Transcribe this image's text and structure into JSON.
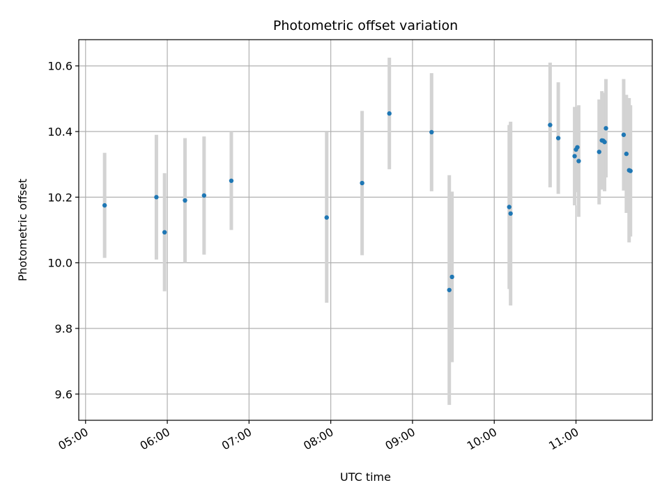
{
  "chart_data": {
    "type": "scatter",
    "title": "Photometric offset variation",
    "xlabel": "UTC time",
    "ylabel": "Photometric offset",
    "xlim": [
      "04:55",
      "11:56"
    ],
    "ylim": [
      9.52,
      10.68
    ],
    "xticks": [
      "05:00",
      "06:00",
      "07:00",
      "08:00",
      "09:00",
      "10:00",
      "11:00"
    ],
    "yticks": [
      "9.6",
      "9.8",
      "10.0",
      "10.2",
      "10.4",
      "10.6"
    ],
    "grid": true,
    "colors": {
      "points": "#1f77b4",
      "errorbars": "#d3d3d3",
      "grid": "#b0b0b0"
    },
    "points": [
      {
        "t": "05:14",
        "y": 10.175,
        "err": 0.16
      },
      {
        "t": "05:52",
        "y": 10.2,
        "err": 0.19
      },
      {
        "t": "05:58",
        "y": 10.093,
        "err": 0.18
      },
      {
        "t": "06:13",
        "y": 10.19,
        "err": 0.19
      },
      {
        "t": "06:27",
        "y": 10.205,
        "err": 0.18
      },
      {
        "t": "06:47",
        "y": 10.25,
        "err": 0.15
      },
      {
        "t": "07:57",
        "y": 10.138,
        "err": 0.26
      },
      {
        "t": "08:23",
        "y": 10.243,
        "err": 0.22
      },
      {
        "t": "08:43",
        "y": 10.455,
        "err": 0.17
      },
      {
        "t": "09:14",
        "y": 10.398,
        "err": 0.18
      },
      {
        "t": "09:27",
        "y": 9.917,
        "err": 0.35
      },
      {
        "t": "09:29",
        "y": 9.957,
        "err": 0.26
      },
      {
        "t": "10:11",
        "y": 10.17,
        "err": 0.25
      },
      {
        "t": "10:12",
        "y": 10.15,
        "err": 0.28
      },
      {
        "t": "10:41",
        "y": 10.42,
        "err": 0.19
      },
      {
        "t": "10:47",
        "y": 10.38,
        "err": 0.17
      },
      {
        "t": "10:59",
        "y": 10.325,
        "err": 0.15
      },
      {
        "t": "11:00",
        "y": 10.345,
        "err": 0.13
      },
      {
        "t": "11:01",
        "y": 10.352,
        "err": 0.12
      },
      {
        "t": "11:02",
        "y": 10.31,
        "err": 0.17
      },
      {
        "t": "11:17",
        "y": 10.338,
        "err": 0.16
      },
      {
        "t": "11:19",
        "y": 10.373,
        "err": 0.15
      },
      {
        "t": "11:20",
        "y": 10.372,
        "err": 0.14
      },
      {
        "t": "11:21",
        "y": 10.368,
        "err": 0.15
      },
      {
        "t": "11:22",
        "y": 10.41,
        "err": 0.15
      },
      {
        "t": "11:35",
        "y": 10.39,
        "err": 0.17
      },
      {
        "t": "11:37",
        "y": 10.332,
        "err": 0.18
      },
      {
        "t": "11:39",
        "y": 10.282,
        "err": 0.22
      },
      {
        "t": "11:40",
        "y": 10.28,
        "err": 0.2
      }
    ]
  }
}
